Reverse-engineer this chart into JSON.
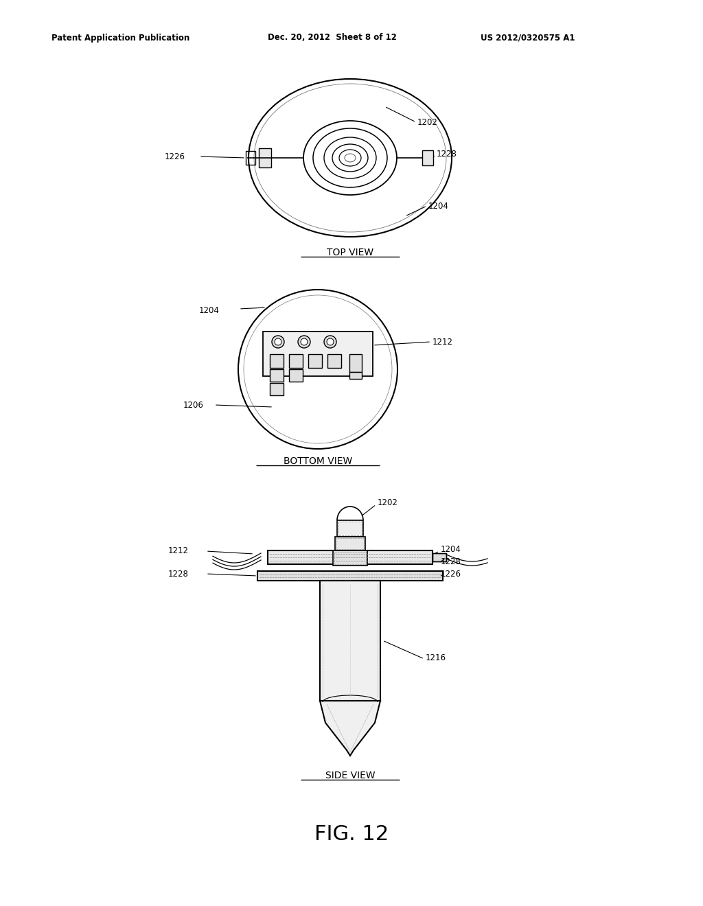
{
  "bg_color": "#ffffff",
  "header_left": "Patent Application Publication",
  "header_mid": "Dec. 20, 2012  Sheet 8 of 12",
  "header_right": "US 2012/0320575 A1",
  "fig_label": "FIG. 12",
  "top_view_label": "TOP VIEW",
  "bottom_view_label": "BOTTOM VIEW",
  "side_view_label": "SIDE VIEW"
}
